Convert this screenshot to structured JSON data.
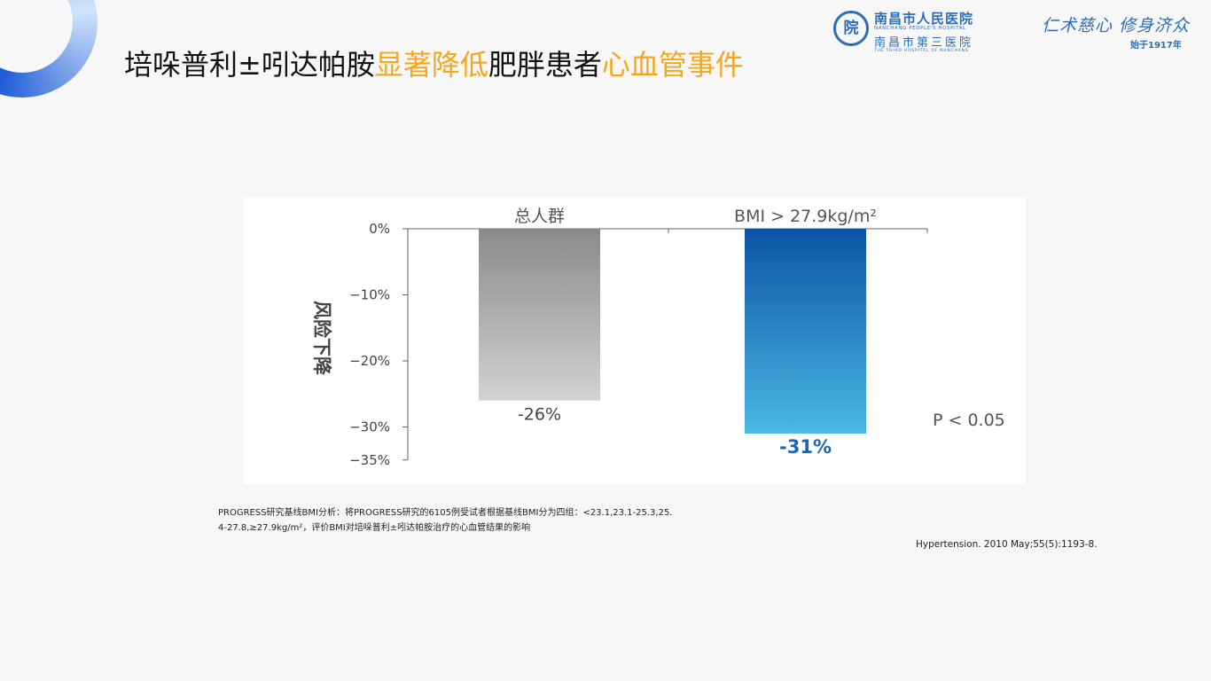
{
  "slide": {
    "title_parts": [
      {
        "text": "培哚普利±吲达帕胺",
        "highlight": false
      },
      {
        "text": "显著降低",
        "highlight": true
      },
      {
        "text": "肥胖患者",
        "highlight": false
      },
      {
        "text": "心血管事件",
        "highlight": true
      }
    ],
    "highlight_color": "#f5a81e"
  },
  "header": {
    "logo_cn": "南昌市人民医院",
    "logo_en": "NANCHANG PEOPLE'S HOSPITAL",
    "logo_cn2": "南昌市第三医院",
    "logo_en2": "THE THIRD HOSPITAL OF NANCHANG",
    "motto": "仁术慈心 修身济众",
    "since": "始于1917年"
  },
  "chart_data": {
    "type": "bar",
    "categories": [
      "总人群",
      "BMI > 27.9kg/m²"
    ],
    "values": [
      -26,
      -31
    ],
    "value_labels": [
      "-26%",
      "-31%"
    ],
    "ylabel": "风险下降",
    "ylim": [
      -35,
      0
    ],
    "yticks": [
      0,
      -10,
      -20,
      -30,
      -35
    ],
    "ytick_labels": [
      "0%",
      "−10%",
      "−20%",
      "−30%",
      "−35%"
    ],
    "annotation": "P < 0.05",
    "colors": [
      "#8a8a8a",
      "#1c67b4"
    ],
    "grid": false
  },
  "footnote": {
    "line1": "PROGRESS研究基线BMI分析：将PROGRESS研究的6105例受试者根据基线BMI分为四组：<23.1,23.1-25.3,25.",
    "line2": "4-27.8,≥27.9kg/m²，评价BMI对培哚普利±吲达帕胺治疗的心血管结果的影响",
    "reference": "Hypertension. 2010 May;55(5):1193-8."
  }
}
